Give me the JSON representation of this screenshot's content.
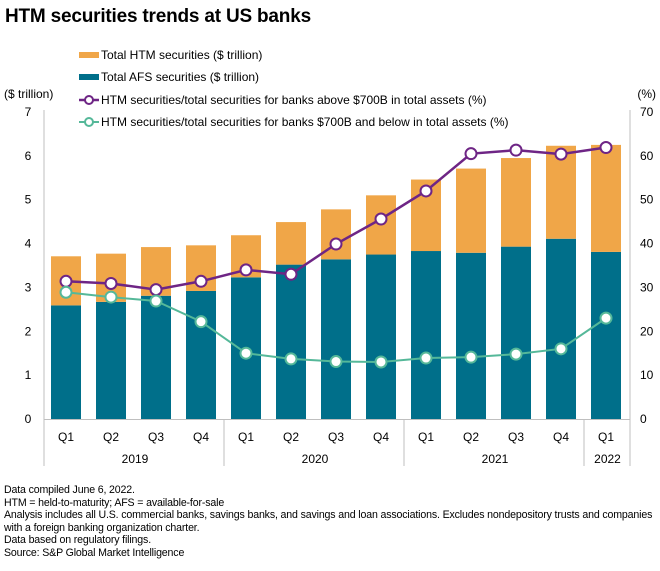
{
  "title": "HTM securities trends at US banks",
  "chart_data": {
    "type": "bar",
    "title": "HTM securities trends at US banks",
    "stacked": true,
    "left_axis": {
      "label": "($ trillion)",
      "range": [
        0,
        7
      ],
      "ticks": [
        "0",
        "1",
        "2",
        "3",
        "4",
        "5",
        "6",
        "7"
      ]
    },
    "right_axis": {
      "label": "(%)",
      "range": [
        0,
        70
      ],
      "ticks": [
        "0",
        "10",
        "20",
        "30",
        "40",
        "50",
        "60",
        "70"
      ]
    },
    "grid": false,
    "legend_position": "top",
    "categories": [
      "Q1",
      "Q2",
      "Q3",
      "Q4",
      "Q1",
      "Q2",
      "Q3",
      "Q4",
      "Q1",
      "Q2",
      "Q3",
      "Q4",
      "Q1"
    ],
    "year_groups": [
      {
        "label": "2019",
        "count": 4
      },
      {
        "label": "2020",
        "count": 4
      },
      {
        "label": "2021",
        "count": 4
      },
      {
        "label": "2022",
        "count": 1
      }
    ],
    "series": [
      {
        "name": "Total HTM securities ($ trillion)",
        "type": "bar",
        "axis": "left",
        "color": "#F0A648",
        "values": [
          1.12,
          1.1,
          1.11,
          1.04,
          0.96,
          0.97,
          1.14,
          1.35,
          1.63,
          1.92,
          2.02,
          2.12,
          2.44
        ]
      },
      {
        "name": "Total AFS securities ($ trillion)",
        "type": "bar",
        "axis": "left",
        "color": "#006F8A",
        "values": [
          2.59,
          2.67,
          2.81,
          2.92,
          3.23,
          3.52,
          3.64,
          3.75,
          3.83,
          3.79,
          3.93,
          4.11,
          3.81
        ]
      },
      {
        "name": "HTM securities/total securities for banks above $700B in total assets (%)",
        "type": "line",
        "axis": "right",
        "color": "#6E2585",
        "values": [
          31.4,
          30.9,
          29.5,
          31.4,
          34.0,
          33.0,
          39.9,
          45.6,
          52.0,
          60.5,
          61.3,
          60.4,
          61.9
        ]
      },
      {
        "name": "HTM securities/total securities for banks $700B and below in total assets (%)",
        "type": "line",
        "axis": "right",
        "color": "#55B899",
        "values": [
          28.9,
          27.8,
          26.9,
          22.2,
          15.0,
          13.7,
          13.1,
          13.0,
          13.9,
          14.1,
          14.8,
          16.0,
          23.0
        ]
      }
    ]
  },
  "footer": [
    "Data compiled June 6, 2022.",
    "HTM = held-to-maturity; AFS = available-for-sale",
    "Analysis includes all U.S. commercial banks, savings banks, and savings and loan associations. Excludes nondepository trusts and companies with a foreign banking organization charter.",
    "Data based on regulatory filings.",
    "Source: S&P Global Market Intelligence"
  ]
}
